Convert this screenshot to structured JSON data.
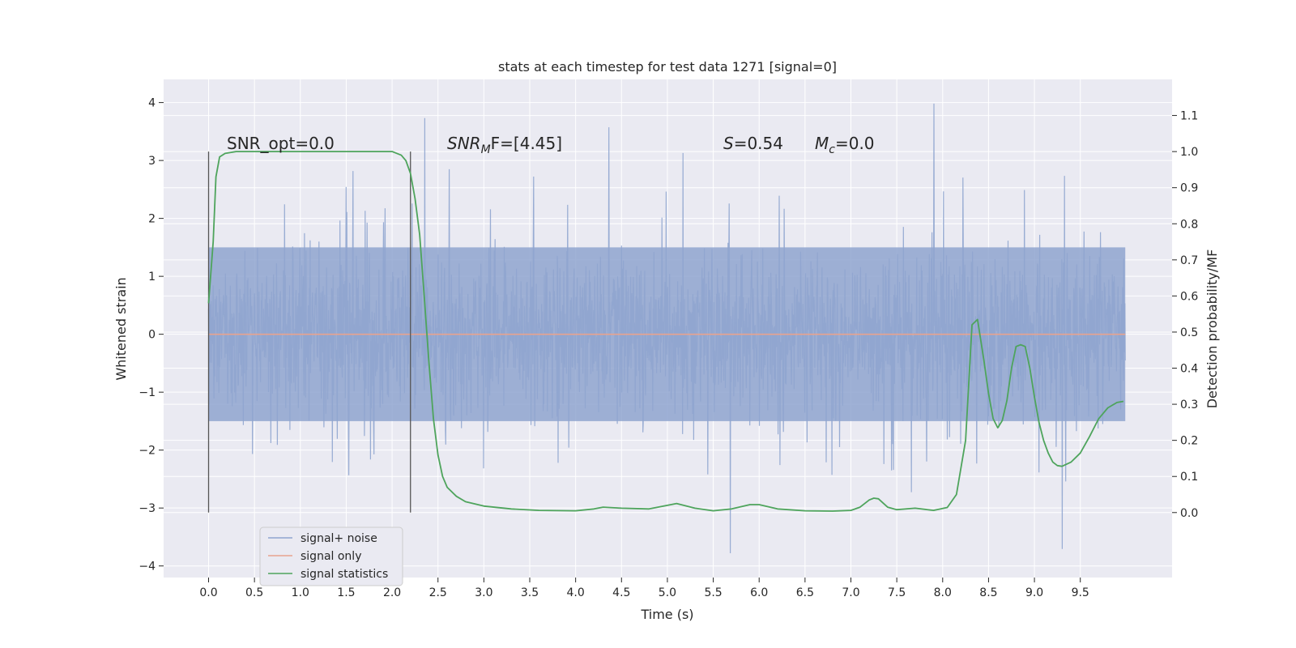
{
  "chart_data": {
    "type": "line",
    "title": "stats at each timestep for test data 1271 [signal=0]",
    "xlabel": "Time (s)",
    "ylabel": "Whitened strain",
    "ylabel_right": "Detection probability/MF",
    "xlim": [
      -0.49,
      10.5
    ],
    "ylim": [
      -4.2,
      4.4
    ],
    "ylim_right": [
      -0.18,
      1.2
    ],
    "x_ticks": [
      0.0,
      0.5,
      1.0,
      1.5,
      2.0,
      2.5,
      3.0,
      3.5,
      4.0,
      4.5,
      5.0,
      5.5,
      6.0,
      6.5,
      7.0,
      7.5,
      8.0,
      8.5,
      9.0,
      9.5
    ],
    "x_tick_labels": [
      "0.0",
      "0.5",
      "1.0",
      "1.5",
      "2.0",
      "2.5",
      "3.0",
      "3.5",
      "4.0",
      "4.5",
      "5.0",
      "5.5",
      "6.0",
      "6.5",
      "7.0",
      "7.5",
      "8.0",
      "8.5",
      "9.0",
      "9.5"
    ],
    "y_ticks": [
      -4,
      -3,
      -2,
      -1,
      0,
      1,
      2,
      3,
      4
    ],
    "y_tick_labels": [
      "−4",
      "−3",
      "−2",
      "−1",
      "0",
      "1",
      "2",
      "3",
      "4"
    ],
    "y_right_ticks": [
      0.0,
      0.1,
      0.2,
      0.3,
      0.4,
      0.5,
      0.6,
      0.7,
      0.8,
      0.9,
      1.0,
      1.1
    ],
    "y_right_tick_labels": [
      "0.0",
      "0.1",
      "0.2",
      "0.3",
      "0.4",
      "0.5",
      "0.6",
      "0.7",
      "0.8",
      "0.9",
      "1.0",
      "1.1"
    ],
    "grid": true,
    "legend_position": "lower-left",
    "series": [
      {
        "name": "signal+ noise",
        "axis": "left",
        "color": "#8fa5cf",
        "x_range": [
          0.0,
          9.99
        ],
        "typical_band": [
          -1.5,
          1.5
        ],
        "envelope": [
          -3.8,
          4.05
        ]
      },
      {
        "name": "signal only",
        "axis": "left",
        "color": "#e8a38e",
        "x": [
          0.0,
          9.99
        ],
        "y": [
          0.0,
          0.0
        ]
      },
      {
        "name": "signal statistics",
        "axis": "right",
        "color": "#4ea45c",
        "x": [
          0.0,
          0.05,
          0.08,
          0.12,
          0.18,
          0.3,
          0.5,
          1.0,
          1.5,
          1.8,
          2.0,
          2.1,
          2.15,
          2.2,
          2.25,
          2.3,
          2.35,
          2.4,
          2.45,
          2.5,
          2.55,
          2.6,
          2.7,
          2.8,
          3.0,
          3.3,
          3.6,
          4.0,
          4.2,
          4.3,
          4.5,
          4.8,
          5.0,
          5.1,
          5.3,
          5.5,
          5.7,
          5.9,
          6.0,
          6.2,
          6.5,
          6.8,
          7.0,
          7.1,
          7.2,
          7.25,
          7.3,
          7.4,
          7.5,
          7.7,
          7.9,
          8.05,
          8.15,
          8.25,
          8.32,
          8.38,
          8.45,
          8.5,
          8.55,
          8.6,
          8.65,
          8.7,
          8.75,
          8.8,
          8.85,
          8.9,
          8.95,
          9.0,
          9.05,
          9.1,
          9.15,
          9.2,
          9.25,
          9.3,
          9.4,
          9.5,
          9.6,
          9.7,
          9.8,
          9.9,
          9.97
        ],
        "y": [
          0.58,
          0.75,
          0.93,
          0.985,
          0.995,
          1.0,
          1.0,
          1.0,
          1.0,
          1.0,
          1.0,
          0.99,
          0.975,
          0.94,
          0.87,
          0.77,
          0.6,
          0.42,
          0.26,
          0.16,
          0.1,
          0.07,
          0.045,
          0.03,
          0.018,
          0.01,
          0.006,
          0.005,
          0.01,
          0.015,
          0.012,
          0.01,
          0.02,
          0.025,
          0.012,
          0.005,
          0.01,
          0.022,
          0.022,
          0.01,
          0.005,
          0.004,
          0.006,
          0.015,
          0.035,
          0.04,
          0.038,
          0.015,
          0.008,
          0.012,
          0.006,
          0.014,
          0.05,
          0.2,
          0.52,
          0.535,
          0.42,
          0.33,
          0.26,
          0.235,
          0.255,
          0.31,
          0.4,
          0.46,
          0.465,
          0.46,
          0.4,
          0.32,
          0.25,
          0.2,
          0.165,
          0.14,
          0.13,
          0.128,
          0.14,
          0.165,
          0.21,
          0.26,
          0.29,
          0.305,
          0.308
        ]
      }
    ],
    "vertical_lines": [
      {
        "x": 0.0,
        "y_right_range": [
          0.0,
          1.0
        ]
      },
      {
        "x": 2.2,
        "y_right_range": [
          0.0,
          1.0
        ]
      }
    ],
    "annotations": {
      "snr_opt": "SNR_opt=0.0",
      "snr_mf_sym": "SNR",
      "snr_mf_sub": "M",
      "snr_mf_rest": "F=[4.45]",
      "s_sym": "S",
      "s_rest": "=0.54",
      "mc_sym": "M",
      "mc_sub": "c",
      "mc_rest": "=0.0"
    },
    "colors": {
      "plot_background": "#eaeaf2",
      "grid": "#ffffff",
      "marker_line": "#555555"
    }
  }
}
